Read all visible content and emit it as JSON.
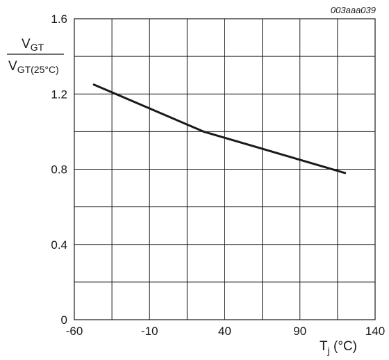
{
  "reference_code": "003aaa039",
  "chart_data": {
    "type": "line",
    "title": "",
    "ylabel": {
      "numerator": "V",
      "numerator_sub": "GT",
      "denominator": "V",
      "denominator_sub": "GT(25°C)"
    },
    "xlabel": {
      "text": "T",
      "sub": "j",
      "unit": " (°C)"
    },
    "xlim": [
      -60,
      140
    ],
    "ylim": [
      0,
      1.6
    ],
    "xticks": [
      -60,
      -10,
      40,
      90,
      140
    ],
    "xtick_labels": [
      "-60",
      "-10",
      "40",
      "90",
      "140"
    ],
    "yticks": [
      0,
      0.4,
      0.8,
      1.2,
      1.6
    ],
    "ytick_labels": [
      "0",
      "0.4",
      "0.8",
      "1.2",
      "1.6"
    ],
    "x_grid_step": 25,
    "y_grid_step": 0.2,
    "grid": true,
    "series": [
      {
        "color": "#1a1a1a",
        "x": [
          -47,
          26,
          120
        ],
        "y": [
          1.25,
          1.0,
          0.78
        ]
      }
    ]
  }
}
